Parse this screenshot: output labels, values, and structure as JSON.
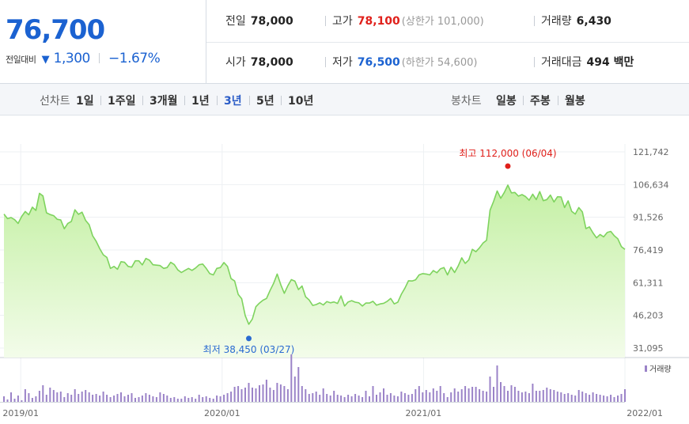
{
  "price": {
    "current": "76,700",
    "change_label": "전일대비",
    "change_arrow": "▼",
    "change_value": "1,300",
    "change_percent": "−1.67%"
  },
  "quote": {
    "prev_close_label": "전일",
    "prev_close": "78,000",
    "high_label": "고가",
    "high": "78,100",
    "upper_limit": "(상한가 101,000)",
    "volume_label": "거래량",
    "volume": "6,430",
    "open_label": "시가",
    "open": "78,000",
    "low_label": "저가",
    "low": "76,500",
    "lower_limit": "(하한가 54,600)",
    "trade_value_label": "거래대금",
    "trade_value": "494 백만"
  },
  "toolbar": {
    "line_label": "선차트",
    "line_periods": [
      "1일",
      "1주일",
      "3개월",
      "1년",
      "3년",
      "5년",
      "10년"
    ],
    "active_period": "3년",
    "candle_label": "봉차트",
    "candle_periods": [
      "일봉",
      "주봉",
      "월봉"
    ]
  },
  "colors": {
    "line": "#7ed35e",
    "fill_top": "#c4f0a4",
    "fill_bottom": "#f3fcea",
    "volume": "#9b83c8",
    "up": "#e0201b",
    "down": "#1b62d1"
  },
  "chart_data": {
    "type": "area",
    "x_ticks": [
      "2019/01",
      "2020/01",
      "2021/01",
      "2022/01"
    ],
    "y_ticks": [
      "121,742",
      "106,634",
      "91,526",
      "76,419",
      "61,311",
      "46,203",
      "31,095"
    ],
    "ylim": [
      31095,
      121742
    ],
    "x_range": [
      "2018/12",
      "2022/01"
    ],
    "annotations": {
      "max_label": "최고 112,000 (06/04)",
      "min_label": "최저 38,450 (03/27)"
    },
    "volume_legend": "거래량",
    "series": [
      {
        "values": [
          93000,
          90900,
          91400,
          90400,
          88700,
          91900,
          94200,
          92700,
          96200,
          94700,
          102600,
          101400,
          93600,
          92800,
          92300,
          90600,
          90300,
          86200,
          88700,
          89600,
          95000,
          92900,
          93900,
          90100,
          88100,
          83000,
          80400,
          77000,
          74200,
          73000,
          67900,
          68800,
          67500,
          71000,
          70700,
          68800,
          68500,
          71400,
          71400,
          69500,
          72500,
          71700,
          69600,
          69400,
          69200,
          67900,
          68300,
          70700,
          69700,
          67200,
          66000,
          67000,
          67900,
          67000,
          68100,
          69600,
          69900,
          67900,
          65500,
          64900,
          67900,
          68300,
          70600,
          68800,
          63200,
          62100,
          55900,
          53900,
          46100,
          42100,
          44500,
          50200,
          51900,
          53200,
          54000,
          57700,
          61000,
          65300,
          60400,
          56400,
          59900,
          62700,
          62000,
          58100,
          59800,
          54800,
          53300,
          50800,
          51200,
          52000,
          51000,
          52600,
          52000,
          52400,
          51700,
          55200,
          50500,
          52400,
          53000,
          52300,
          52000,
          50500,
          51900,
          51900,
          52700,
          50900,
          51500,
          51800,
          52700,
          54000,
          51500,
          52300,
          56000,
          58800,
          62200,
          62100,
          62600,
          64900,
          65500,
          65300,
          64900,
          66900,
          65900,
          67700,
          68300,
          64900,
          68500,
          66000,
          69000,
          72800,
          70200,
          71800,
          76700,
          75600,
          77400,
          79600,
          80900,
          94800,
          98900,
          103700,
          100300,
          103000,
          106400,
          102800,
          103000,
          101300,
          102000,
          101100,
          99400,
          102200,
          99700,
          103400,
          99200,
          99700,
          101800,
          98600,
          101000,
          100900,
          96000,
          99100,
          94300,
          93000,
          96000,
          94000,
          86300,
          87100,
          84300,
          82000,
          83600,
          82500,
          84500,
          85000,
          83000,
          81600,
          78000,
          76700
        ]
      }
    ],
    "volume": [
      0.7,
      0.3,
      1.2,
      0.4,
      0.8,
      0.2,
      1.6,
      1.1,
      0.5,
      0.7,
      1.4,
      2.1,
      0.9,
      1.8,
      1.5,
      1.2,
      1.3,
      0.6,
      1.1,
      0.9,
      1.6,
      1.0,
      1.3,
      1.5,
      1.2,
      0.9,
      1.0,
      0.8,
      1.3,
      0.9,
      0.6,
      0.8,
      1.0,
      1.2,
      0.7,
      0.9,
      1.1,
      0.5,
      0.6,
      0.8,
      1.1,
      0.9,
      0.7,
      0.6,
      1.2,
      1.0,
      0.8,
      0.5,
      0.6,
      0.4,
      0.4,
      0.7,
      0.5,
      0.6,
      0.4,
      0.9,
      0.6,
      0.7,
      0.5,
      0.4,
      0.8,
      0.7,
      0.9,
      1.1,
      1.3,
      1.9,
      2.0,
      1.6,
      1.8,
      2.4,
      1.8,
      1.7,
      2.1,
      2.2,
      2.8,
      1.8,
      1.5,
      2.4,
      2.2,
      2.0,
      1.6,
      6.0,
      3.2,
      4.4,
      2.0,
      1.6,
      1.0,
      1.1,
      1.3,
      0.9,
      1.7,
      1.0,
      0.8,
      1.4,
      0.9,
      0.8,
      0.6,
      0.9,
      0.7,
      1.0,
      0.8,
      0.6,
      1.4,
      0.7,
      2.0,
      0.9,
      1.2,
      1.7,
      0.9,
      1.1,
      0.8,
      0.7,
      1.3,
      1.1,
      0.9,
      1.0,
      1.6,
      2.0,
      1.2,
      1.5,
      1.2,
      1.7,
      1.4,
      2.0,
      1.1,
      0.6,
      1.2,
      1.7,
      1.3,
      1.6,
      2.0,
      1.7,
      1.9,
      1.9,
      1.6,
      1.4,
      1.3,
      3.2,
      1.9,
      4.6,
      2.5,
      2.0,
      1.4,
      2.1,
      1.9,
      1.4,
      1.2,
      1.3,
      1.1,
      2.3,
      1.4,
      1.4,
      1.5,
      1.8,
      1.6,
      1.5,
      1.3,
      1.2,
      1.0,
      1.1,
      0.9,
      0.8,
      1.5,
      1.3,
      1.1,
      0.9,
      1.2,
      1.0,
      0.9,
      0.8,
      0.7,
      0.9,
      0.6,
      0.8,
      1.0,
      1.6
    ]
  }
}
